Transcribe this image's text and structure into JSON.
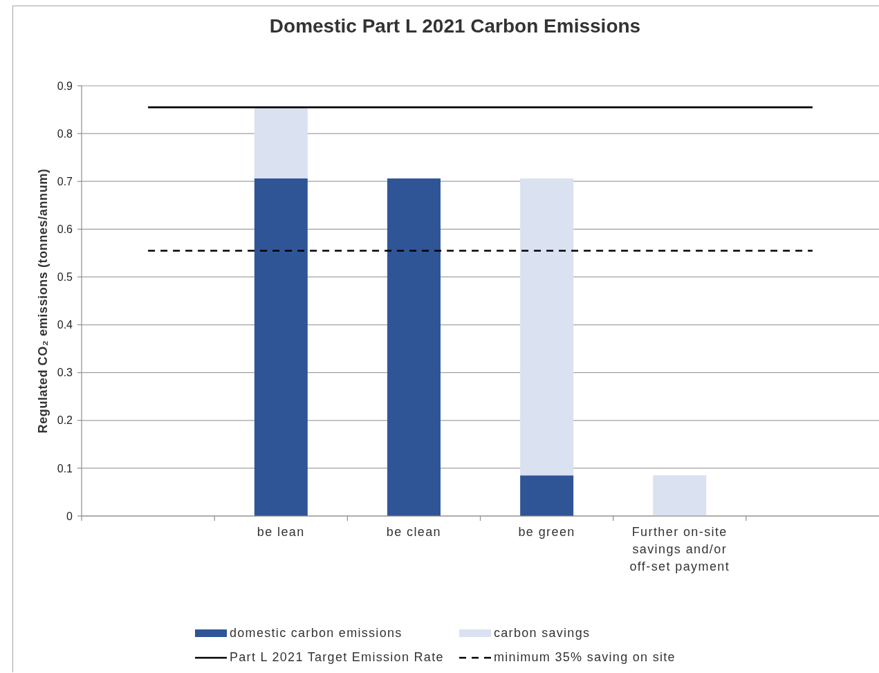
{
  "chart_data": {
    "type": "bar",
    "title": "Domestic Part L 2021 Carbon Emissions",
    "ylabel": "Regulated CO₂ emissions (tonnes/annum)",
    "categories": [
      null,
      "be lean",
      "be clean",
      "be green",
      "Further on-site savings and/or off-set payment",
      null
    ],
    "stacked": true,
    "series": [
      {
        "name": "domestic carbon emissions",
        "color": "#2f5597",
        "values": [
          null,
          0.706,
          0.706,
          0.085,
          null,
          null
        ]
      },
      {
        "name": "carbon savings",
        "color": "#dae1f0",
        "values": [
          null,
          0.149,
          null,
          0.621,
          0.085,
          null
        ]
      },
      {
        "name": "Part L 2021 Target Emission Rate",
        "type": "line",
        "color": "#000000",
        "line_style": "solid",
        "values": [
          0.855,
          0.855,
          0.855,
          0.855,
          0.855,
          0.855
        ]
      },
      {
        "name": "minimum 35% saving on site",
        "type": "line",
        "color": "#000000",
        "line_style": "dashed",
        "values": [
          0.555,
          0.555,
          0.555,
          0.555,
          0.555,
          0.555
        ]
      }
    ],
    "ylim": [
      0,
      0.9
    ],
    "yticks": [
      0,
      0.1,
      0.2,
      0.3,
      0.4,
      0.5,
      0.6,
      0.7,
      0.8,
      0.9
    ],
    "grid": "y",
    "legend": "bottom",
    "marker": "none"
  }
}
